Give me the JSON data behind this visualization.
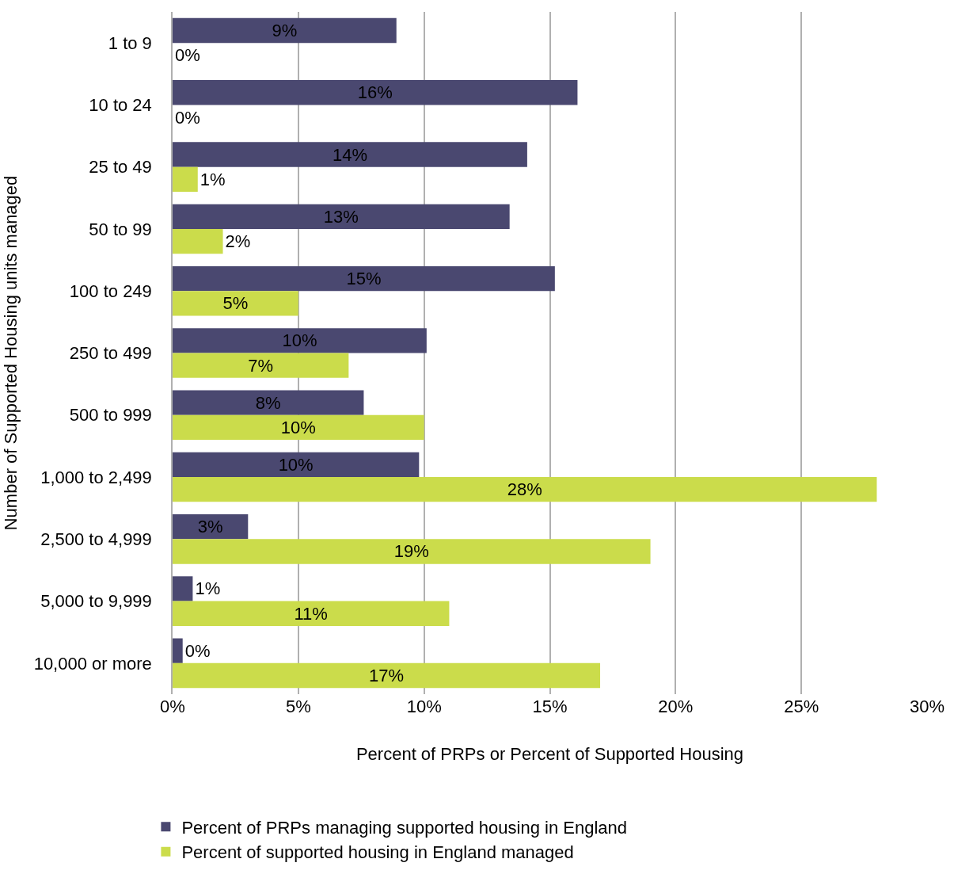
{
  "chart_data": {
    "type": "bar",
    "orientation": "horizontal",
    "xlabel": "Percent of PRPs or Percent of Supported Housing",
    "ylabel": "Number of Supported Housing units managed",
    "categories": [
      "1 to 9",
      "10 to 24",
      "25 to 49",
      "50 to 99",
      "100 to 249",
      "250 to 499",
      "500 to 999",
      "1,000 to 2,499",
      "2,500 to 4,999",
      "5,000 to 9,999",
      "10,000 or more"
    ],
    "series": [
      {
        "name": "Percent of PRPs managing supported housing in England",
        "color": "#4a4870",
        "values": [
          8.9,
          16.1,
          14.1,
          13.4,
          15.2,
          10.1,
          7.6,
          9.8,
          3.0,
          0.8,
          0.4
        ],
        "value_labels": [
          "9%",
          "16%",
          "14%",
          "13%",
          "15%",
          "10%",
          "8%",
          "10%",
          "3%",
          "1%",
          "0%"
        ]
      },
      {
        "name": "Percent of supported housing in England managed",
        "color": "#cbdc4b",
        "values": [
          0,
          0,
          1.0,
          2.0,
          5.0,
          7.0,
          10.0,
          28.0,
          19.0,
          11.0,
          17.0
        ],
        "value_labels": [
          "0%",
          "0%",
          "1%",
          "2%",
          "5%",
          "7%",
          "10%",
          "28%",
          "19%",
          "11%",
          "17%"
        ]
      }
    ],
    "xlim": [
      0,
      30
    ],
    "xticks": [
      {
        "value": 0,
        "label": "0%"
      },
      {
        "value": 5,
        "label": "5%"
      },
      {
        "value": 10,
        "label": "10%"
      },
      {
        "value": 15,
        "label": "15%"
      },
      {
        "value": 20,
        "label": "20%"
      },
      {
        "value": 25,
        "label": "25%"
      },
      {
        "value": 30,
        "label": "30%"
      }
    ],
    "grid": "x",
    "legend": "bottom"
  }
}
